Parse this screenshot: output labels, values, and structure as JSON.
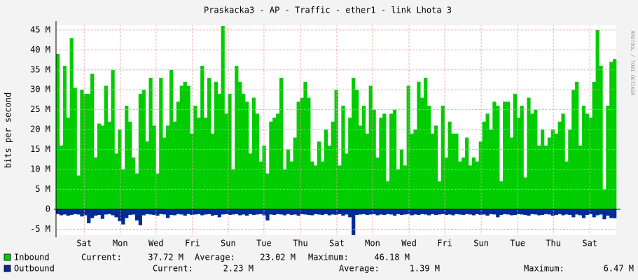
{
  "chart_data": {
    "type": "bar",
    "title": "Praskacka3 - AP - Traffic - ether1 - link Lhota 3",
    "ylabel": "bits per second",
    "side_note": "RRDTOOL / TOBI OETIKER",
    "xlim": [
      0,
      163
    ],
    "xticks": [
      {
        "value": 8.2,
        "label": "Sat"
      },
      {
        "value": 18.7,
        "label": "Mon"
      },
      {
        "value": 29.1,
        "label": "Wed"
      },
      {
        "value": 39.7,
        "label": "Fri"
      },
      {
        "value": 50.1,
        "label": "Sun"
      },
      {
        "value": 60.5,
        "label": "Tue"
      },
      {
        "value": 71.1,
        "label": "Thu"
      },
      {
        "value": 81.7,
        "label": "Sat"
      },
      {
        "value": 92.1,
        "label": "Mon"
      },
      {
        "value": 102.7,
        "label": "Wed"
      },
      {
        "value": 113.1,
        "label": "Fri"
      },
      {
        "value": 123.7,
        "label": "Sun"
      },
      {
        "value": 134.3,
        "label": "Tue"
      },
      {
        "value": 144.7,
        "label": "Thu"
      },
      {
        "value": 155.3,
        "label": "Sat"
      }
    ],
    "ylim": [
      -6.5,
      46.2
    ],
    "yticks": [
      {
        "value": -5,
        "label": "-5 M"
      },
      0,
      {
        "value": 5,
        "label": "5 M"
      },
      {
        "value": 10,
        "label": "10 M"
      },
      {
        "value": 15,
        "label": "15 M"
      },
      {
        "value": 20,
        "label": "20 M"
      },
      {
        "value": 25,
        "label": "25 M"
      },
      {
        "value": 30,
        "label": "30 M"
      },
      {
        "value": 35,
        "label": "35 M"
      },
      {
        "value": 40,
        "label": "40 M"
      },
      {
        "value": 45,
        "label": "45 M"
      }
    ],
    "grid": true,
    "series": [
      {
        "name": "Inbound",
        "color": "#00cc00",
        "stats": [
          "Current:",
          "37.72 M",
          "Average:",
          "23.02 M",
          "Maximum:",
          "46.18 M"
        ],
        "values": [
          39,
          16,
          36,
          23,
          43,
          30.5,
          8.5,
          30,
          29,
          29,
          34,
          13,
          21.5,
          21,
          31,
          22,
          35,
          14,
          20,
          10,
          26,
          22,
          13,
          9,
          29,
          30,
          17,
          33,
          21,
          9,
          33,
          18,
          21,
          35,
          22,
          27,
          31,
          32,
          31,
          19,
          26,
          23,
          36,
          23,
          33,
          19,
          32,
          29,
          46,
          24,
          29,
          10,
          36,
          32,
          29,
          27,
          14,
          28,
          24,
          12,
          16,
          9,
          22,
          23,
          24,
          33,
          10,
          15,
          12,
          18,
          27,
          28,
          32,
          28,
          12,
          11,
          17,
          12,
          20,
          16,
          22,
          30,
          11,
          26,
          14,
          23,
          33,
          30,
          21,
          26,
          19,
          31,
          25,
          13,
          23,
          24,
          7,
          24,
          25,
          10,
          15,
          11,
          31,
          19,
          20,
          32,
          28,
          33,
          26,
          19,
          21,
          7,
          26,
          13,
          22,
          19,
          19,
          12,
          13,
          18,
          11,
          13,
          12,
          17,
          22,
          24,
          20,
          27,
          26,
          7,
          27,
          27,
          18,
          29,
          23,
          26,
          8,
          28,
          24,
          25,
          16,
          20,
          16,
          18,
          20,
          19,
          22,
          24,
          12,
          20,
          30,
          32,
          16,
          26,
          24,
          23,
          32,
          45,
          36,
          5,
          26,
          37,
          37.7
        ]
      },
      {
        "name": "Outbound",
        "color": "#002a97",
        "stats": [
          "Current:",
          "2.23 M",
          "Average:",
          "1.39 M",
          "Maximum:",
          "6.47 M"
        ],
        "values": [
          -1.2,
          -1.5,
          -1.3,
          -1.6,
          -1.4,
          -1.2,
          -1.3,
          -1.8,
          -1.5,
          -3.5,
          -2.2,
          -1.6,
          -1.4,
          -2.4,
          -1.3,
          -1.2,
          -1.5,
          -2.0,
          -3.0,
          -3.8,
          -2.2,
          -1.4,
          -1.3,
          -2.8,
          -4.0,
          -1.5,
          -1.2,
          -1.3,
          -1.4,
          -1.6,
          -1.2,
          -1.3,
          -2.2,
          -1.4,
          -1.5,
          -1.2,
          -1.3,
          -1.6,
          -1.2,
          -1.4,
          -1.3,
          -1.2,
          -1.5,
          -1.3,
          -1.2,
          -1.6,
          -1.4,
          -2.0,
          -1.3,
          -1.2,
          -1.4,
          -1.3,
          -1.2,
          -1.5,
          -1.3,
          -1.6,
          -1.2,
          -1.4,
          -1.3,
          -1.2,
          -1.5,
          -2.8,
          -1.3,
          -1.4,
          -1.2,
          -1.3,
          -1.5,
          -1.2,
          -1.4,
          -1.3,
          -1.6,
          -1.2,
          -1.3,
          -1.4,
          -1.5,
          -1.2,
          -1.3,
          -1.4,
          -1.2,
          -1.5,
          -1.3,
          -1.4,
          -1.2,
          -1.6,
          -1.3,
          -2.0,
          -6.47,
          -1.4,
          -1.3,
          -1.2,
          -1.4,
          -1.3,
          -1.2,
          -1.5,
          -1.3,
          -1.4,
          -1.2,
          -1.3,
          -1.6,
          -1.2,
          -1.4,
          -1.3,
          -1.2,
          -1.5,
          -1.3,
          -1.4,
          -1.2,
          -1.3,
          -1.5,
          -1.2,
          -1.4,
          -1.3,
          -1.2,
          -1.4,
          -1.3,
          -1.5,
          -1.2,
          -1.3,
          -1.4,
          -1.2,
          -1.3,
          -1.5,
          -1.2,
          -1.4,
          -1.3,
          -1.6,
          -1.2,
          -1.3,
          -2.0,
          -1.4,
          -1.2,
          -1.3,
          -1.5,
          -1.4,
          -1.2,
          -1.3,
          -1.4,
          -1.6,
          -1.2,
          -1.3,
          -1.5,
          -1.4,
          -1.2,
          -1.3,
          -1.6,
          -1.4,
          -1.2,
          -1.5,
          -1.3,
          -1.4,
          -2.0,
          -1.3,
          -1.5,
          -2.2,
          -1.4,
          -1.2,
          -2.0,
          -1.5,
          -1.3,
          -2.5,
          -1.6,
          -2.2,
          -2.23
        ]
      }
    ]
  }
}
